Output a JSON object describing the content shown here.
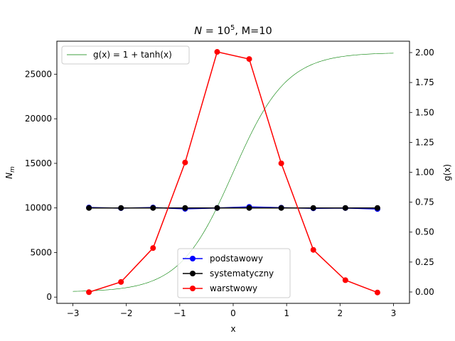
{
  "chart_data": {
    "type": "line",
    "title_parts": [
      "N",
      " = 10",
      "5",
      ", M=10"
    ],
    "xlabel": "x",
    "ylabel_parts": [
      "N",
      "m"
    ],
    "y2label": "g(x)",
    "xlim": [
      -3.3,
      3.3
    ],
    "ylim": [
      -700,
      28700
    ],
    "y2lim": [
      -0.095,
      2.095
    ],
    "xticks": [
      -3,
      -2,
      -1,
      0,
      1,
      2,
      3
    ],
    "xtick_labels": [
      "−3",
      "−2",
      "−1",
      "0",
      "1",
      "2",
      "3"
    ],
    "yticks": [
      0,
      5000,
      10000,
      15000,
      20000,
      25000
    ],
    "ytick_labels": [
      "0",
      "5000",
      "10000",
      "15000",
      "20000",
      "25000"
    ],
    "y2ticks": [
      0,
      0.25,
      0.5,
      0.75,
      1.0,
      1.25,
      1.5,
      1.75,
      2.0
    ],
    "y2tick_labels": [
      "0.00",
      "0.25",
      "0.50",
      "0.75",
      "1.00",
      "1.25",
      "1.50",
      "1.75",
      "2.00"
    ],
    "x": [
      -2.7,
      -2.1,
      -1.5,
      -0.9,
      -0.3,
      0.3,
      0.9,
      1.5,
      2.1,
      2.7
    ],
    "series": [
      {
        "name": "podstawowy",
        "color": "#0000ff",
        "values": [
          10050,
          9980,
          10050,
          9900,
          10000,
          10120,
          10030,
          9960,
          9990,
          9880
        ]
      },
      {
        "name": "systematyczny",
        "color": "#000000",
        "values": [
          10000,
          10000,
          10000,
          10000,
          10000,
          10000,
          10000,
          10000,
          10000,
          10000
        ]
      },
      {
        "name": "warstwowy",
        "color": "#ff0000",
        "values": [
          550,
          1700,
          5500,
          15100,
          27500,
          26700,
          15000,
          5300,
          1900,
          520
        ]
      }
    ],
    "curve": {
      "name": "g(x) = 1 + tanh(x)",
      "color": "#008000",
      "formula": "1 + tanh(x)",
      "x_range": [
        -3,
        3
      ],
      "axis": "right"
    },
    "legend_main_position": "lower-center",
    "legend_curve_position": "upper-left",
    "grid": false
  }
}
